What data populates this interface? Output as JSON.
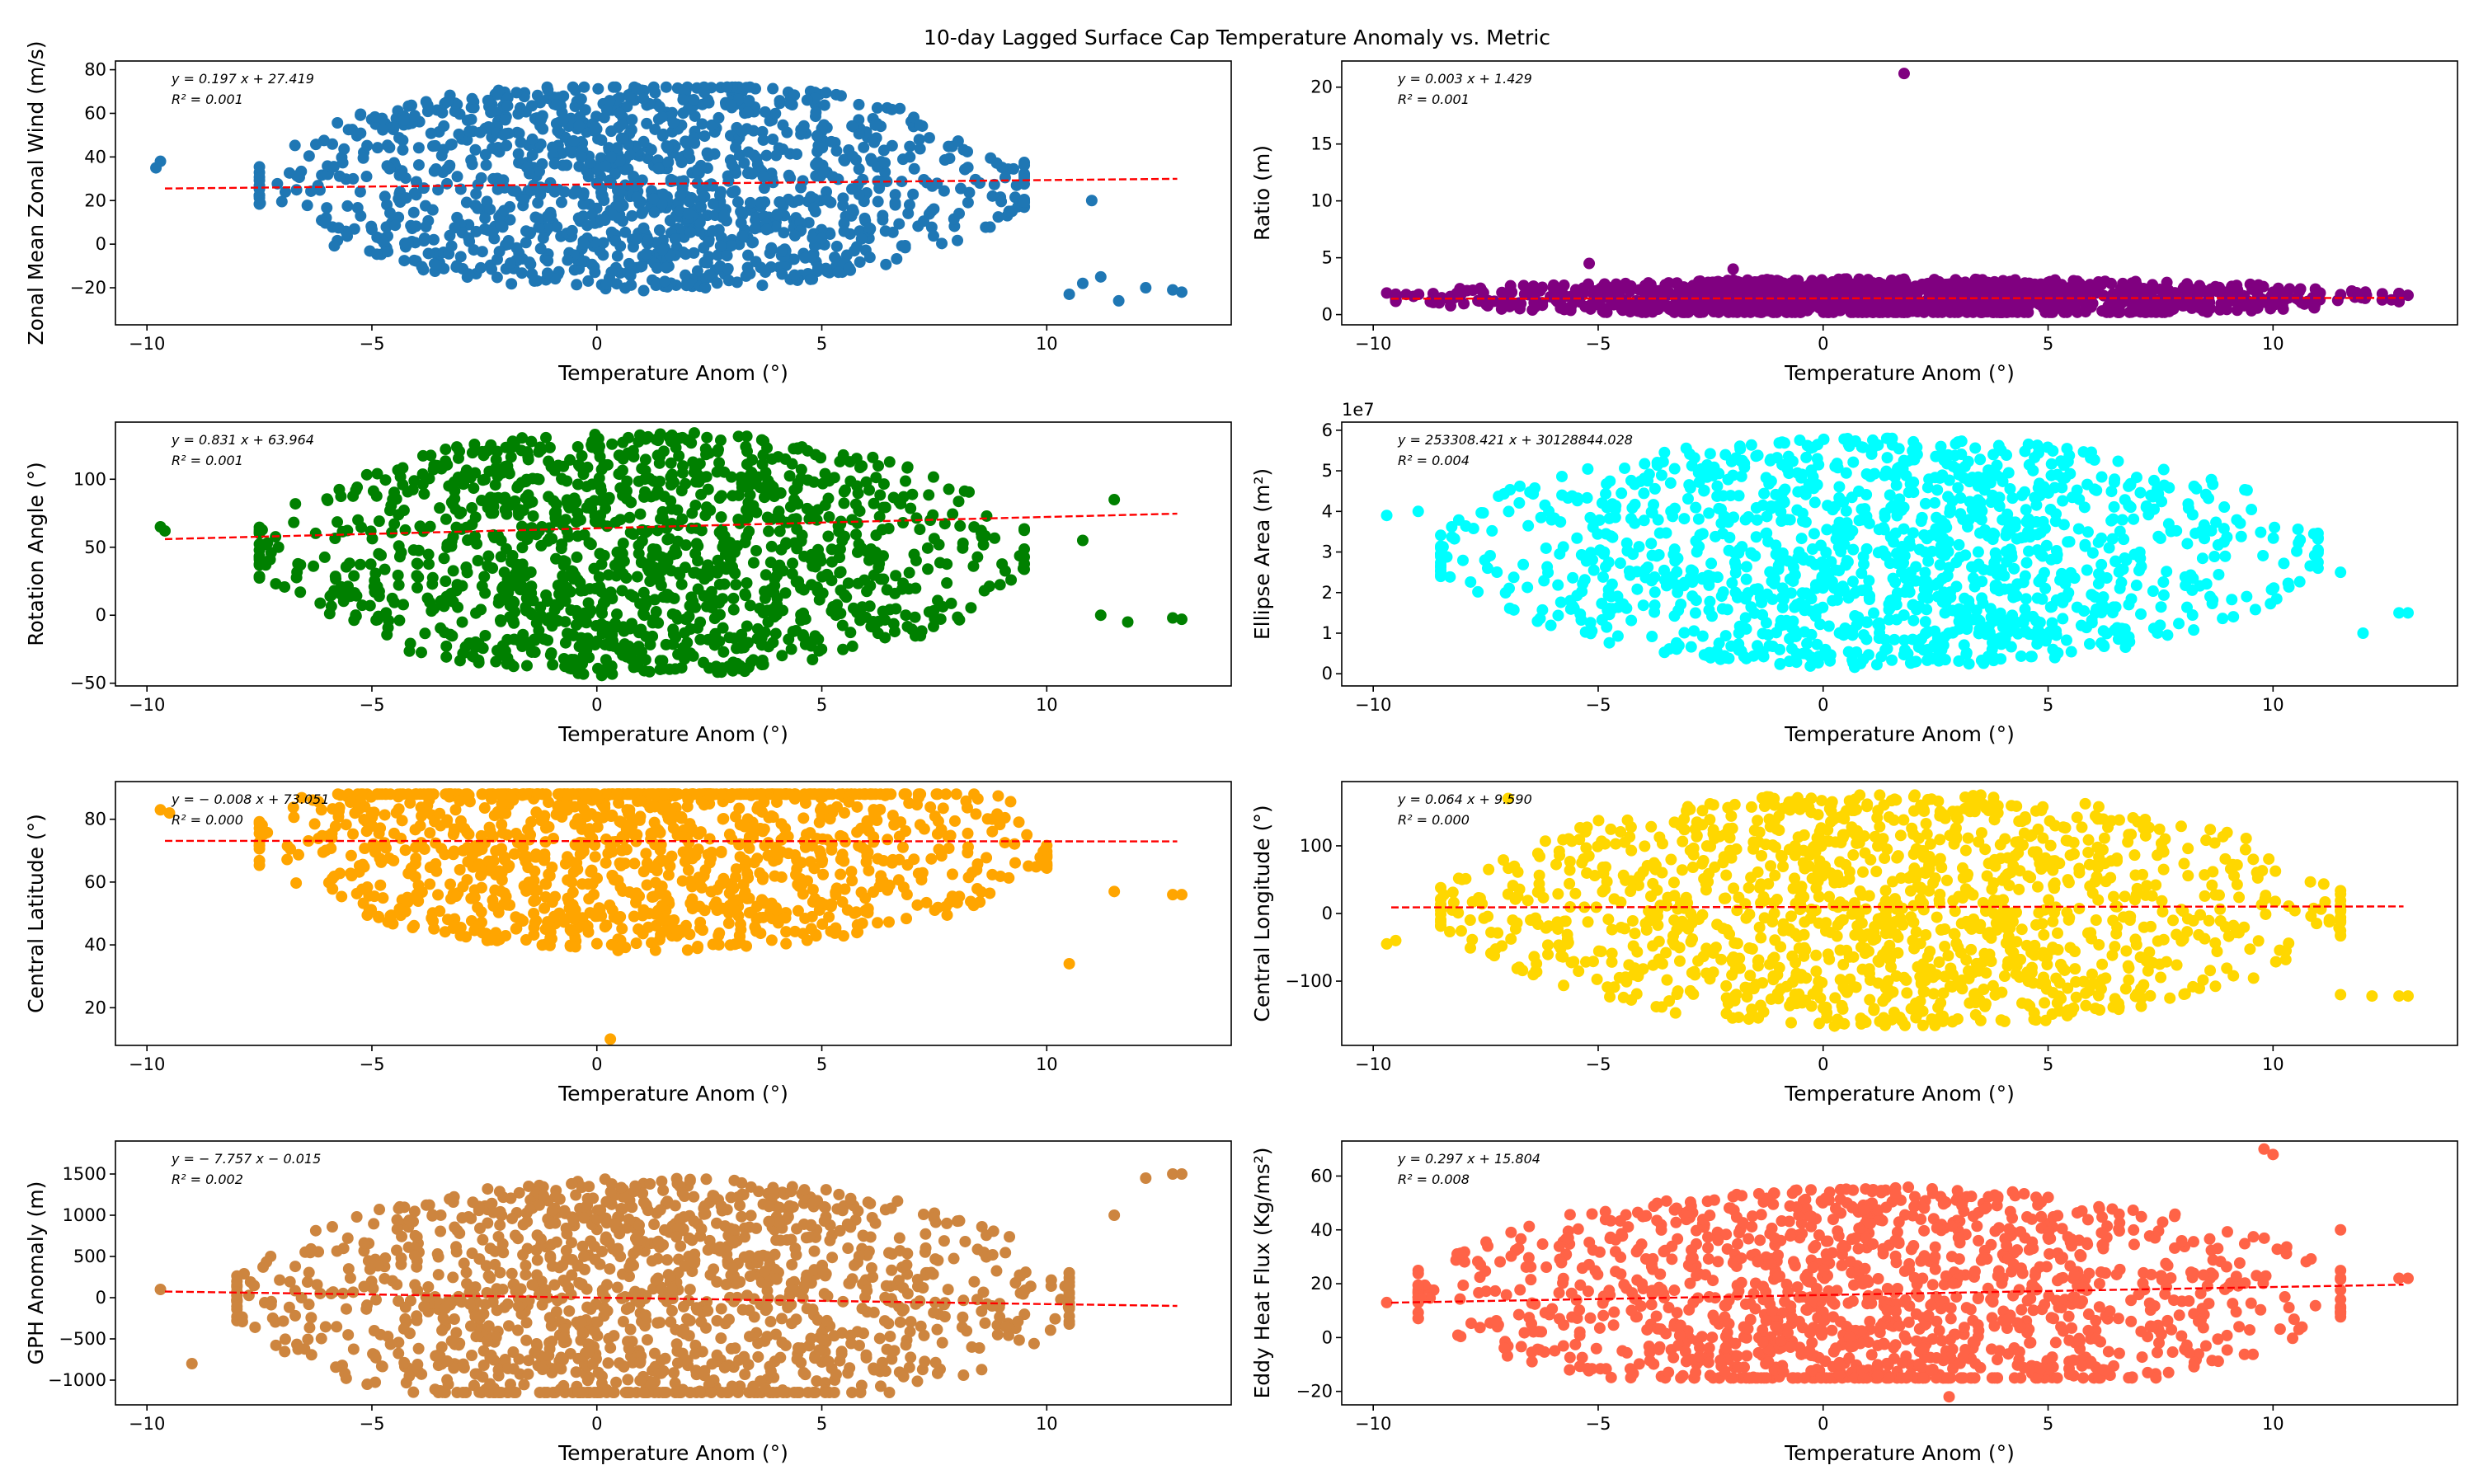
{
  "figure": {
    "title": "10-day Lagged Surface Cap Temperature Anomaly vs. Metric"
  },
  "chart_data": [
    {
      "type": "scatter",
      "xlabel": "Temperature Anom (°)",
      "ylabel": "Zonal Mean Zonal Wind (m/s)",
      "xlim": [
        -10.7,
        14.1
      ],
      "ylim": [
        -37,
        84
      ],
      "xticks": [
        -10,
        -5,
        0,
        5,
        10
      ],
      "yticks": [
        -20,
        0,
        20,
        40,
        60,
        80
      ],
      "color": "#1f77b4",
      "fit": {
        "slope": 0.197,
        "intercept": 27.419,
        "r2": 0.001
      },
      "equation": "y = 0.197 x + 27.419",
      "r2_label": "R² = 0.001",
      "cloud": {
        "x": [
          -7.5,
          9.5
        ],
        "y": [
          -25,
          72
        ],
        "center_y": 27
      },
      "outliers": [
        [
          -9.8,
          35
        ],
        [
          -9.7,
          38
        ],
        [
          10.5,
          -23
        ],
        [
          11.2,
          -15
        ],
        [
          11.6,
          -26
        ],
        [
          12.2,
          -20
        ],
        [
          12.8,
          -21
        ],
        [
          13.0,
          -22
        ],
        [
          11.0,
          20
        ],
        [
          10.8,
          -18
        ]
      ]
    },
    {
      "type": "scatter",
      "xlabel": "Temperature Anom (°)",
      "ylabel": "Ratio (m)",
      "xlim": [
        -10.7,
        14.1
      ],
      "ylim": [
        -0.9,
        22.3
      ],
      "xticks": [
        -10,
        -5,
        0,
        5,
        10
      ],
      "yticks": [
        0,
        5,
        10,
        15,
        20
      ],
      "color": "#800080",
      "fit": {
        "slope": 0.003,
        "intercept": 1.429,
        "r2": 0.001
      },
      "equation": "y = 0.003 x + 1.429",
      "r2_label": "R² = 0.001",
      "cloud": {
        "x": [
          -9.5,
          12.8
        ],
        "y": [
          0.2,
          3.5
        ],
        "center_y": 1.5
      },
      "outliers": [
        [
          1.8,
          21.2
        ],
        [
          -5.2,
          4.5
        ],
        [
          -2.0,
          4.0
        ],
        [
          12.8,
          1.8
        ],
        [
          13.0,
          1.7
        ],
        [
          -9.7,
          1.9
        ]
      ]
    },
    {
      "type": "scatter",
      "xlabel": "Temperature Anom (°)",
      "ylabel": "Rotation Angle (°)",
      "xlim": [
        -10.7,
        14.1
      ],
      "ylim": [
        -52,
        142
      ],
      "xticks": [
        -10,
        -5,
        0,
        5,
        10
      ],
      "yticks": [
        -50,
        0,
        50,
        100
      ],
      "color": "#008000",
      "fit": {
        "slope": 0.831,
        "intercept": 63.964,
        "r2": 0.001
      },
      "equation": "y = 0.831 x + 63.964",
      "r2_label": "R² = 0.001",
      "cloud": {
        "x": [
          -7.5,
          9.5
        ],
        "y": [
          -45,
          135
        ],
        "center_y": 45
      },
      "outliers": [
        [
          -9.7,
          65
        ],
        [
          -9.6,
          62
        ],
        [
          11.2,
          0
        ],
        [
          11.8,
          -5
        ],
        [
          12.8,
          -2
        ],
        [
          13.0,
          -3
        ],
        [
          10.8,
          55
        ],
        [
          11.5,
          85
        ]
      ]
    },
    {
      "type": "scatter",
      "xlabel": "Temperature Anom (°)",
      "ylabel": "Ellipse Area (m²)",
      "offset_label": "1e7",
      "xlim": [
        -10.7,
        14.1
      ],
      "ylim": [
        -0.3,
        6.2
      ],
      "xticks": [
        -10,
        -5,
        0,
        5,
        10
      ],
      "yticks": [
        0,
        1,
        2,
        3,
        4,
        5,
        6
      ],
      "color": "#00ffff",
      "fit": {
        "slope": 253308.421,
        "intercept": 30128844.028,
        "r2": 0.004
      },
      "equation": "y = 253308.421 x + 30128844.028",
      "r2_label": "R² = 0.004",
      "cloud": {
        "x": [
          -8.5,
          11.0
        ],
        "y": [
          0.1,
          5.8
        ],
        "center_y": 3.0
      },
      "outliers": [
        [
          -9.7,
          3.9
        ],
        [
          12.8,
          1.5
        ],
        [
          13.0,
          1.5
        ],
        [
          11.5,
          2.5
        ],
        [
          12.0,
          1.0
        ],
        [
          -9.0,
          4.0
        ]
      ]
    },
    {
      "type": "scatter",
      "xlabel": "Temperature Anom (°)",
      "ylabel": "Central Latitude (°)",
      "xlim": [
        -10.7,
        14.1
      ],
      "ylim": [
        8,
        92
      ],
      "xticks": [
        -10,
        -5,
        0,
        5,
        10
      ],
      "yticks": [
        20,
        40,
        60,
        80
      ],
      "color": "#ffa500",
      "fit": {
        "slope": -0.008,
        "intercept": 73.051,
        "r2": 0.0
      },
      "equation": "y = − 0.008 x + 73.051",
      "r2_label": "R² = 0.000",
      "cloud": {
        "x": [
          -7.5,
          10.0
        ],
        "y": [
          20,
          88
        ],
        "center_y": 72
      },
      "outliers": [
        [
          0.3,
          10
        ],
        [
          -9.7,
          83
        ],
        [
          -9.5,
          82
        ],
        [
          12.8,
          56
        ],
        [
          13.0,
          56
        ],
        [
          11.5,
          57
        ],
        [
          10.5,
          34
        ]
      ]
    },
    {
      "type": "scatter",
      "xlabel": "Temperature Anom (°)",
      "ylabel": "Central Longitude (°)",
      "xlim": [
        -10.7,
        14.1
      ],
      "ylim": [
        -195,
        195
      ],
      "xticks": [
        -10,
        -5,
        0,
        5,
        10
      ],
      "yticks": [
        -100,
        0,
        100
      ],
      "color": "#ffd700",
      "fit": {
        "slope": 0.064,
        "intercept": 9.59,
        "r2": 0.0
      },
      "equation": "y = 0.064 x + 9.590",
      "r2_label": "R² = 0.000",
      "cloud": {
        "x": [
          -8.5,
          11.5
        ],
        "y": [
          -175,
          175
        ],
        "center_y": 5
      },
      "outliers": [
        [
          -9.7,
          -45
        ],
        [
          -9.5,
          -40
        ],
        [
          12.8,
          -122
        ],
        [
          13.0,
          -122
        ],
        [
          12.2,
          -122
        ],
        [
          11.5,
          -120
        ],
        [
          -7.0,
          170
        ]
      ]
    },
    {
      "type": "scatter",
      "xlabel": "Temperature Anom (°)",
      "ylabel": "GPH Anomaly (m)",
      "xlim": [
        -10.7,
        14.1
      ],
      "ylim": [
        -1300,
        1900
      ],
      "xticks": [
        -10,
        -5,
        0,
        5,
        10
      ],
      "yticks": [
        -1000,
        -500,
        0,
        500,
        1000,
        1500
      ],
      "color": "#cd853f",
      "fit": {
        "slope": -7.757,
        "intercept": -0.015,
        "r2": 0.002
      },
      "equation": "y = − 7.757 x − 0.015",
      "r2_label": "R² = 0.002",
      "cloud": {
        "x": [
          -8.0,
          10.5
        ],
        "y": [
          -1150,
          1750
        ],
        "center_y": 0
      },
      "outliers": [
        [
          -9.7,
          100
        ],
        [
          12.8,
          1500
        ],
        [
          13.0,
          1500
        ],
        [
          12.2,
          1450
        ],
        [
          11.5,
          1000
        ],
        [
          -9.0,
          -800
        ]
      ]
    },
    {
      "type": "scatter",
      "xlabel": "Temperature Anom (°)",
      "ylabel": "Eddy Heat Flux (Kg/ms²)",
      "xlim": [
        -10.7,
        14.1
      ],
      "ylim": [
        -25,
        73
      ],
      "xticks": [
        -10,
        -5,
        0,
        5,
        10
      ],
      "yticks": [
        -20,
        0,
        20,
        40,
        60
      ],
      "color": "#ff6347",
      "fit": {
        "slope": 0.297,
        "intercept": 15.804,
        "r2": 0.008
      },
      "equation": "y = 0.297 x + 15.804",
      "r2_label": "R² = 0.008",
      "cloud": {
        "x": [
          -9.0,
          11.5
        ],
        "y": [
          -15,
          65
        ],
        "center_y": 16
      },
      "outliers": [
        [
          9.8,
          70
        ],
        [
          10.0,
          68
        ],
        [
          12.8,
          22
        ],
        [
          13.0,
          22
        ],
        [
          11.5,
          40
        ],
        [
          -9.7,
          13
        ],
        [
          2.8,
          -22
        ]
      ]
    }
  ]
}
